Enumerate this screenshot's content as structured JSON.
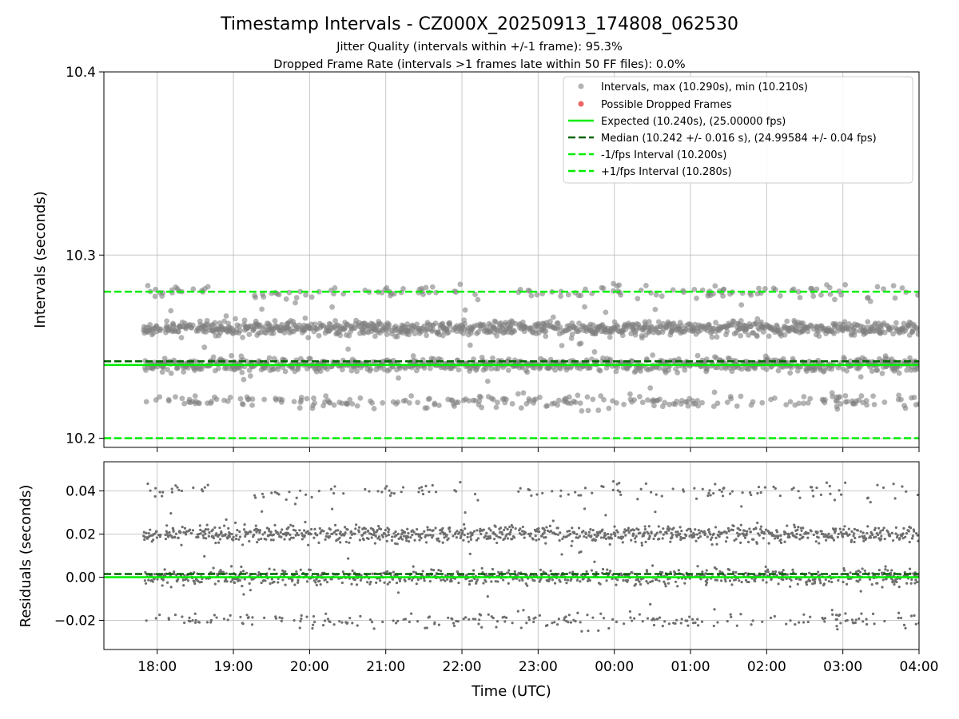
{
  "chart_data": {
    "type": "scatter",
    "title": "Timestamp Intervals - CZ000X_20250913_174808_062530",
    "subtitle_lines": [
      "Jitter Quality (intervals within +/-1 frame): 95.3%",
      "Dropped Frame Rate (intervals >1 frames late within 50 FF files): 0.0%"
    ],
    "x_axis": {
      "label": "Time (UTC)",
      "tick_labels": [
        "18:00",
        "19:00",
        "20:00",
        "21:00",
        "22:00",
        "23:00",
        "00:00",
        "01:00",
        "02:00",
        "03:00",
        "04:00"
      ],
      "range_hours": [
        17.3,
        28.0
      ],
      "data_range_hours": [
        17.82,
        28.0
      ]
    },
    "panels": [
      {
        "name": "intervals",
        "ylabel": "Intervals (seconds)",
        "ylim": [
          10.195,
          10.4
        ],
        "y_ticks": [
          10.2,
          10.3,
          10.4
        ],
        "y_tick_labels": [
          "10.2",
          "10.3",
          "10.4"
        ],
        "grid": true,
        "legend_position": "upper-right",
        "legend": [
          {
            "label": "Intervals, max (10.290s), min (10.210s)",
            "kind": "marker",
            "color": "#808080"
          },
          {
            "label": "Possible Dropped Frames",
            "kind": "marker",
            "color": "#ee6666"
          },
          {
            "label": "Expected (10.240s), (25.00000 fps)",
            "kind": "line-solid",
            "color": "#00ee00"
          },
          {
            "label": "Median (10.242 +/- 0.016 s), (24.99584 +/- 0.04 fps)",
            "kind": "line-dashed",
            "color": "#006400"
          },
          {
            "label": "-1/fps Interval (10.200s)",
            "kind": "line-dashed",
            "color": "#00ee00"
          },
          {
            "label": "+1/fps Interval (10.280s)",
            "kind": "line-dashed",
            "color": "#00ee00"
          }
        ],
        "reference_lines": [
          {
            "value": 10.24,
            "style": "solid",
            "color": "#00ee00"
          },
          {
            "value": 10.242,
            "style": "dashed",
            "color": "#006400"
          },
          {
            "value": 10.2,
            "style": "dashed",
            "color": "#00ee00"
          },
          {
            "value": 10.28,
            "style": "dashed",
            "color": "#00ee00"
          }
        ],
        "point_bands": [
          {
            "center": 10.26,
            "share": 0.45
          },
          {
            "center": 10.24,
            "share": 0.35
          },
          {
            "center": 10.22,
            "share": 0.11
          },
          {
            "center": 10.28,
            "share": 0.06
          }
        ],
        "point_extremes": {
          "max": 10.29,
          "min": 10.21
        },
        "point_color": "#808080"
      },
      {
        "name": "residuals",
        "ylabel": "Residuals (seconds)",
        "ylim": [
          -0.0335,
          0.0535
        ],
        "y_ticks": [
          -0.02,
          0.0,
          0.02,
          0.04
        ],
        "y_tick_labels": [
          "−0.02",
          "0.00",
          "0.02",
          "0.04"
        ],
        "grid": true,
        "reference_lines": [
          {
            "value": 0.0,
            "style": "solid",
            "color": "#00ee00"
          },
          {
            "value": 0.0015,
            "style": "dashed",
            "color": "#006400"
          }
        ],
        "point_bands": [
          {
            "center": 0.02,
            "share": 0.45
          },
          {
            "center": 0.0,
            "share": 0.35
          },
          {
            "center": -0.02,
            "share": 0.11
          },
          {
            "center": 0.04,
            "share": 0.06
          }
        ],
        "point_extremes": {
          "max": 0.05,
          "min": -0.03
        },
        "point_color": "#6e6e6e"
      }
    ]
  }
}
